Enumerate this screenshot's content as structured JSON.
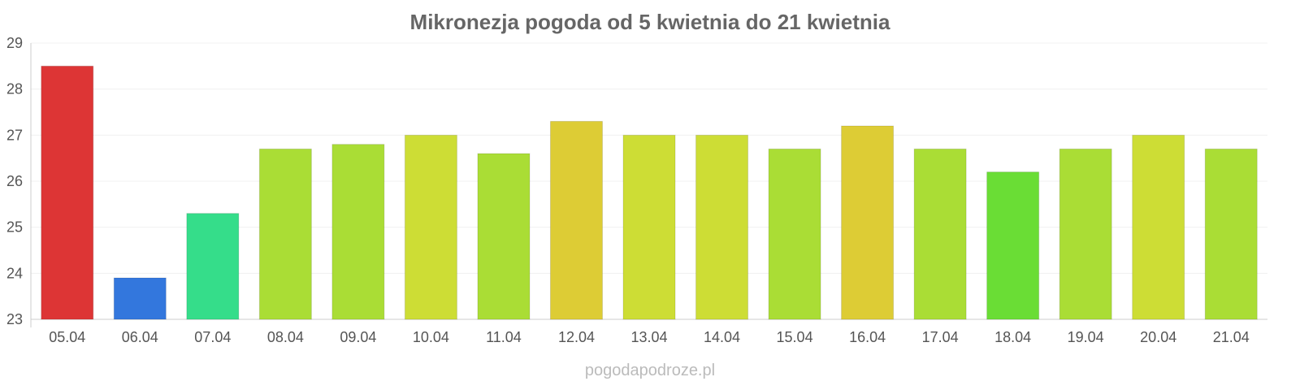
{
  "chart_data": {
    "type": "bar",
    "title": "Mikronezja pogoda od 5 kwietnia do 21 kwietnia",
    "xlabel": "",
    "ylabel": "",
    "ylim": [
      23,
      29
    ],
    "yticks": [
      "23",
      "24",
      "25",
      "26",
      "27",
      "28",
      "29"
    ],
    "grid": true,
    "categories": [
      "05.04",
      "06.04",
      "07.04",
      "08.04",
      "09.04",
      "10.04",
      "11.04",
      "12.04",
      "13.04",
      "14.04",
      "15.04",
      "16.04",
      "17.04",
      "18.04",
      "19.04",
      "20.04",
      "21.04"
    ],
    "values": [
      28.5,
      23.9,
      25.3,
      26.7,
      26.8,
      27.0,
      26.6,
      27.3,
      27.0,
      27.0,
      26.7,
      27.2,
      26.7,
      26.2,
      26.7,
      27.0,
      26.7
    ],
    "colors": [
      "#dd3535",
      "#3377dd",
      "#35dd8a",
      "#aadd35",
      "#aadd35",
      "#cddd35",
      "#aadd35",
      "#ddcc35",
      "#cddd35",
      "#cddd35",
      "#aadd35",
      "#ddcc35",
      "#aadd35",
      "#6add35",
      "#aadd35",
      "#cddd35",
      "#aadd35"
    ]
  },
  "watermark": "pogodapodroze.pl"
}
